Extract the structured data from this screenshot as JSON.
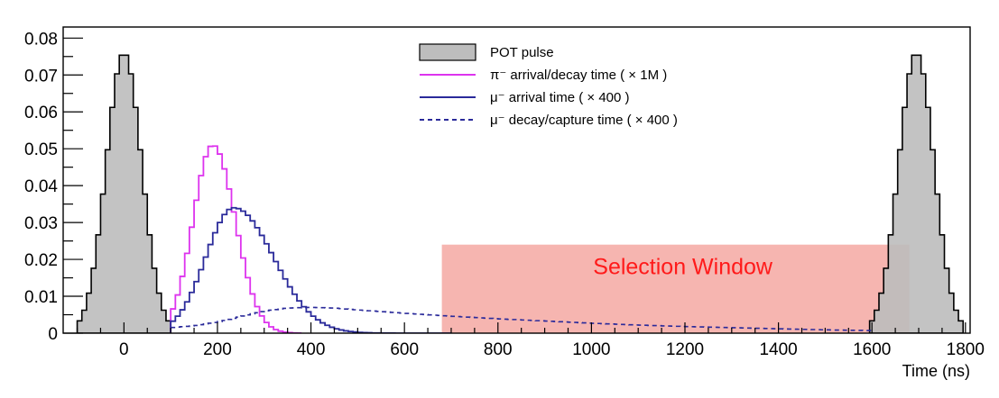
{
  "chart_data": {
    "type": "histogram",
    "title": "",
    "xlabel": "Time (ns)",
    "ylabel": "",
    "xlim": [
      -130,
      1810
    ],
    "ylim": [
      0,
      0.083
    ],
    "x_ticks": [
      0,
      200,
      400,
      600,
      800,
      1000,
      1200,
      1400,
      1600,
      1800
    ],
    "x_tick_labels": [
      "0",
      "200",
      "400",
      "600",
      "800",
      "1000",
      "1200",
      "1400",
      "1600",
      "1800"
    ],
    "y_ticks": [
      0,
      0.01,
      0.02,
      0.03,
      0.04,
      0.05,
      0.06,
      0.07,
      0.08
    ],
    "y_tick_labels": [
      "0",
      "0.01",
      "0.02",
      "0.03",
      "0.04",
      "0.05",
      "0.06",
      "0.07",
      "0.08"
    ],
    "legend": {
      "position": "top-center",
      "entries": [
        {
          "label": "POT pulse",
          "style": "filled-box"
        },
        {
          "label": "π⁻ arrival/decay time ( × 1M )",
          "style": "solid-line"
        },
        {
          "label": "μ⁻ arrival time ( × 400 )",
          "style": "solid-line"
        },
        {
          "label": "μ⁻ decay/capture time ( × 400 )",
          "style": "dashed-line"
        }
      ]
    },
    "bin_width": 10,
    "series": [
      {
        "name": "POT pulse",
        "style": "filled",
        "color": "#bdbdbd",
        "edge_color": "#000000",
        "shape": "gaussian",
        "peaks": [
          0,
          1695
        ],
        "sigma": 38,
        "amplitude": 0.076,
        "half_range": 100
      },
      {
        "name": "π⁻ arrival/decay time ( × 1M )",
        "style": "line",
        "color": "#dd33ee",
        "shape": "skewed-gaussian",
        "x_start": 100,
        "x_end": 380,
        "peak_x": 190,
        "sigma_left": 42,
        "sigma_right": 48,
        "amplitude": 0.051
      },
      {
        "name": "μ⁻ arrival time ( × 400 )",
        "style": "line",
        "color": "#2a2a9a",
        "shape": "skewed-gaussian",
        "x_start": 100,
        "x_end": 700,
        "peak_x": 235,
        "sigma_left": 60,
        "sigma_right": 85,
        "amplitude": 0.034
      },
      {
        "name": "μ⁻ decay/capture time ( × 400 )",
        "style": "dashed",
        "color": "#2a2a9a",
        "points": [
          [
            100,
            0.0015
          ],
          [
            150,
            0.002
          ],
          [
            200,
            0.003
          ],
          [
            250,
            0.0045
          ],
          [
            300,
            0.006
          ],
          [
            350,
            0.0068
          ],
          [
            400,
            0.007
          ],
          [
            450,
            0.0068
          ],
          [
            500,
            0.0063
          ],
          [
            600,
            0.0054
          ],
          [
            700,
            0.0046
          ],
          [
            800,
            0.0039
          ],
          [
            900,
            0.0033
          ],
          [
            1000,
            0.0027
          ],
          [
            1100,
            0.0022
          ],
          [
            1200,
            0.0018
          ],
          [
            1300,
            0.0015
          ],
          [
            1400,
            0.0012
          ],
          [
            1500,
            0.0009
          ],
          [
            1600,
            0.0007
          ]
        ]
      }
    ],
    "annotations": [
      {
        "label": "Selection Window",
        "x_range": [
          680,
          1680
        ],
        "y_range": [
          0,
          0.024
        ],
        "color": "#f4a09a"
      }
    ]
  }
}
